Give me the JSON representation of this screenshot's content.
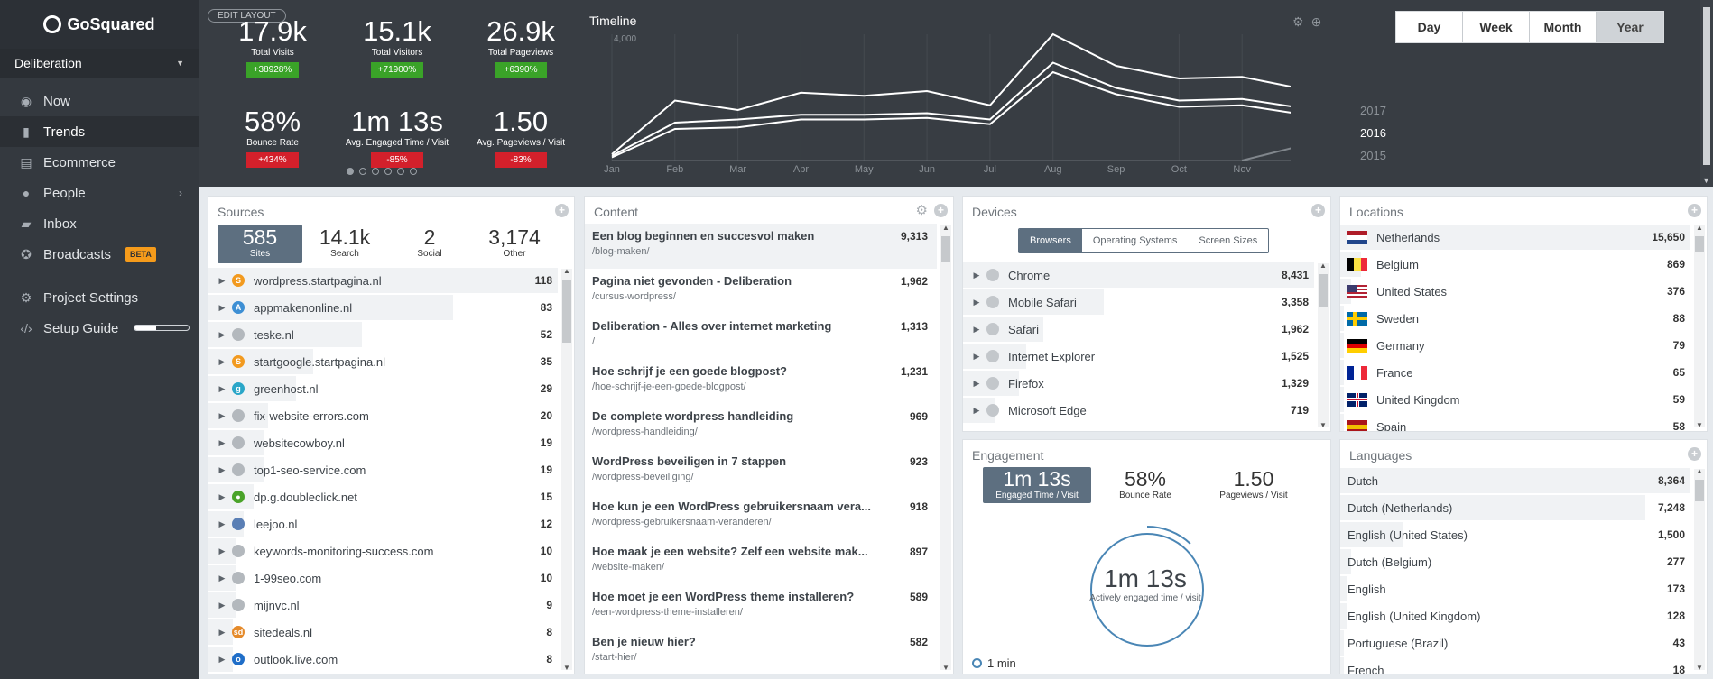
{
  "app": {
    "name": "GoSquared",
    "project": "Deliberation"
  },
  "nav": [
    {
      "label": "Now",
      "icon": "globe-icon"
    },
    {
      "label": "Trends",
      "icon": "bar-chart-icon",
      "active": true
    },
    {
      "label": "Ecommerce",
      "icon": "basket-icon"
    },
    {
      "label": "People",
      "icon": "person-icon",
      "chevron": true
    },
    {
      "label": "Inbox",
      "icon": "chat-icon"
    },
    {
      "label": "Broadcasts",
      "icon": "pin-icon",
      "badge": "BETA"
    }
  ],
  "nav2": [
    {
      "label": "Project Settings",
      "icon": "gear-icon"
    },
    {
      "label": "Setup Guide",
      "icon": "code-icon",
      "progress": 0.4
    }
  ],
  "edit_layout": "EDIT LAYOUT",
  "metrics": [
    {
      "value": "17.9k",
      "label": "Total Visits",
      "change": "+38928%",
      "dir": "up"
    },
    {
      "value": "15.1k",
      "label": "Total Visitors",
      "change": "+71900%",
      "dir": "up"
    },
    {
      "value": "26.9k",
      "label": "Total Pageviews",
      "change": "+6390%",
      "dir": "up"
    },
    {
      "value": "58%",
      "label": "Bounce Rate",
      "change": "+434%",
      "dir": "down"
    },
    {
      "value": "1m 13s",
      "label": "Avg. Engaged Time / Visit",
      "change": "-85%",
      "dir": "down"
    },
    {
      "value": "1.50",
      "label": "Avg. Pageviews / Visit",
      "change": "-83%",
      "dir": "down"
    }
  ],
  "timeline": {
    "title": "Timeline",
    "ytick": "4,000",
    "months": [
      "Jan",
      "Feb",
      "Mar",
      "Apr",
      "May",
      "Jun",
      "Jul",
      "Aug",
      "Sep",
      "Oct",
      "Nov",
      "Dec"
    ]
  },
  "chart_data": {
    "type": "line",
    "title": "Timeline",
    "x": [
      "Jan",
      "Feb",
      "Mar",
      "Apr",
      "May",
      "Jun",
      "Jul",
      "Aug",
      "Sep",
      "Oct",
      "Nov",
      "Dec"
    ],
    "ylim": [
      0,
      4000
    ],
    "series": [
      {
        "name": "Total Visits",
        "values": [
          200,
          1900,
          1600,
          2150,
          2050,
          2200,
          1750,
          4000,
          3000,
          2600,
          2650,
          2250
        ]
      },
      {
        "name": "Total Visitors",
        "values": [
          150,
          1200,
          1300,
          1450,
          1450,
          1500,
          1300,
          3100,
          2300,
          1900,
          1950,
          1650
        ]
      },
      {
        "name": "Total Pageviews",
        "values": [
          100,
          1000,
          1050,
          1300,
          1300,
          1350,
          1150,
          2800,
          2100,
          1700,
          1750,
          1450
        ]
      },
      {
        "name": "2015",
        "values": [
          0,
          0,
          0,
          0,
          0,
          0,
          0,
          0,
          0,
          0,
          0,
          500
        ]
      }
    ]
  },
  "ranges": [
    "Day",
    "Week",
    "Month",
    "Year"
  ],
  "years": [
    "2017",
    "2016",
    "2015"
  ],
  "sources": {
    "title": "Sources",
    "tabs": [
      {
        "value": "585",
        "label": "Sites"
      },
      {
        "value": "14.1k",
        "label": "Search"
      },
      {
        "value": "2",
        "label": "Social"
      },
      {
        "value": "3,174",
        "label": "Other"
      }
    ],
    "rows": [
      {
        "name": "wordpress.startpagina.nl",
        "value": "118",
        "fav": "S",
        "color": "#f29a1f",
        "pct": 1.0
      },
      {
        "name": "appmakenonline.nl",
        "value": "83",
        "fav": "A",
        "color": "#3d8fd4",
        "pct": 0.7
      },
      {
        "name": "teske.nl",
        "value": "52",
        "fav": "",
        "color": "#b3b8bd",
        "pct": 0.44
      },
      {
        "name": "startgoogle.startpagina.nl",
        "value": "35",
        "fav": "S",
        "color": "#f29a1f",
        "pct": 0.3
      },
      {
        "name": "greenhost.nl",
        "value": "29",
        "fav": "g",
        "color": "#2aa6c8",
        "pct": 0.25
      },
      {
        "name": "fix-website-errors.com",
        "value": "20",
        "fav": "",
        "color": "#b3b8bd",
        "pct": 0.17
      },
      {
        "name": "websitecowboy.nl",
        "value": "19",
        "fav": "",
        "color": "#b3b8bd",
        "pct": 0.16
      },
      {
        "name": "top1-seo-service.com",
        "value": "19",
        "fav": "",
        "color": "#b3b8bd",
        "pct": 0.16
      },
      {
        "name": "dp.g.doubleclick.net",
        "value": "15",
        "fav": "●",
        "color": "#4aa329",
        "pct": 0.13
      },
      {
        "name": "leejoo.nl",
        "value": "12",
        "fav": "",
        "color": "#5a7fb5",
        "pct": 0.1
      },
      {
        "name": "keywords-monitoring-success.com",
        "value": "10",
        "fav": "",
        "color": "#b3b8bd",
        "pct": 0.08
      },
      {
        "name": "1-99seo.com",
        "value": "10",
        "fav": "",
        "color": "#b3b8bd",
        "pct": 0.08
      },
      {
        "name": "mijnvc.nl",
        "value": "9",
        "fav": "",
        "color": "#b3b8bd",
        "pct": 0.08
      },
      {
        "name": "sitedeals.nl",
        "value": "8",
        "fav": "sd",
        "color": "#e58a2a",
        "pct": 0.07
      },
      {
        "name": "outlook.live.com",
        "value": "8",
        "fav": "o",
        "color": "#1f6ec8",
        "pct": 0.07
      }
    ]
  },
  "content": {
    "title": "Content",
    "rows": [
      {
        "title": "Een blog beginnen en succesvol maken",
        "path": "/blog-maken/",
        "value": "9,313"
      },
      {
        "title": "Pagina niet gevonden - Deliberation",
        "path": "/cursus-wordpress/",
        "value": "1,962"
      },
      {
        "title": "Deliberation - Alles over internet marketing",
        "path": "/",
        "value": "1,313"
      },
      {
        "title": "Hoe schrijf je een goede blogpost?",
        "path": "/hoe-schrijf-je-een-goede-blogpost/",
        "value": "1,231"
      },
      {
        "title": "De complete wordpress handleiding",
        "path": "/wordpress-handleiding/",
        "value": "969"
      },
      {
        "title": "WordPress beveiligen in 7 stappen",
        "path": "/wordpress-beveiliging/",
        "value": "923"
      },
      {
        "title": "Hoe kun je een WordPress gebruikersnaam vera...",
        "path": "/wordpress-gebruikersnaam-veranderen/",
        "value": "918"
      },
      {
        "title": "Hoe maak je een website? Zelf een website mak...",
        "path": "/website-maken/",
        "value": "897"
      },
      {
        "title": "Hoe moet je een WordPress theme installeren?",
        "path": "/een-wordpress-theme-installeren/",
        "value": "589"
      },
      {
        "title": "Ben je nieuw hier?",
        "path": "/start-hier/",
        "value": "582"
      }
    ]
  },
  "devices": {
    "title": "Devices",
    "tabs": [
      "Browsers",
      "Operating Systems",
      "Screen Sizes"
    ],
    "rows": [
      {
        "name": "Chrome",
        "value": "8,431",
        "pct": 1.0
      },
      {
        "name": "Mobile Safari",
        "value": "3,358",
        "pct": 0.4
      },
      {
        "name": "Safari",
        "value": "1,962",
        "pct": 0.23
      },
      {
        "name": "Internet Explorer",
        "value": "1,525",
        "pct": 0.18
      },
      {
        "name": "Firefox",
        "value": "1,329",
        "pct": 0.16
      },
      {
        "name": "Microsoft Edge",
        "value": "719",
        "pct": 0.09
      }
    ]
  },
  "engagement": {
    "title": "Engagement",
    "tabs": [
      {
        "value": "1m 13s",
        "label": "Engaged Time / Visit"
      },
      {
        "value": "58%",
        "label": "Bounce Rate"
      },
      {
        "value": "1.50",
        "label": "Pageviews / Visit"
      }
    ],
    "ring_value": "1m 13s",
    "ring_label": "Actively engaged time / visit",
    "ring_fill": 0.12,
    "legend": "1 min"
  },
  "locations": {
    "title": "Locations",
    "rows": [
      {
        "name": "Netherlands",
        "value": "15,650",
        "flag": "nl",
        "pct": 1.0
      },
      {
        "name": "Belgium",
        "value": "869",
        "flag": "be",
        "pct": 0.06
      },
      {
        "name": "United States",
        "value": "376",
        "flag": "us",
        "pct": 0.03
      },
      {
        "name": "Sweden",
        "value": "88",
        "flag": "se",
        "pct": 0.01
      },
      {
        "name": "Germany",
        "value": "79",
        "flag": "de",
        "pct": 0.01
      },
      {
        "name": "France",
        "value": "65",
        "flag": "fr",
        "pct": 0.01
      },
      {
        "name": "United Kingdom",
        "value": "59",
        "flag": "gb",
        "pct": 0.01
      },
      {
        "name": "Spain",
        "value": "58",
        "flag": "es",
        "pct": 0.01
      }
    ]
  },
  "languages": {
    "title": "Languages",
    "rows": [
      {
        "name": "Dutch",
        "value": "8,364",
        "pct": 1.0
      },
      {
        "name": "Dutch (Netherlands)",
        "value": "7,248",
        "pct": 0.87
      },
      {
        "name": "English (United States)",
        "value": "1,500",
        "pct": 0.18
      },
      {
        "name": "Dutch (Belgium)",
        "value": "277",
        "pct": 0.03
      },
      {
        "name": "English",
        "value": "173",
        "pct": 0.02
      },
      {
        "name": "English (United Kingdom)",
        "value": "128",
        "pct": 0.02
      },
      {
        "name": "Portuguese (Brazil)",
        "value": "43",
        "pct": 0.01
      },
      {
        "name": "French",
        "value": "18",
        "pct": 0.01
      }
    ]
  }
}
